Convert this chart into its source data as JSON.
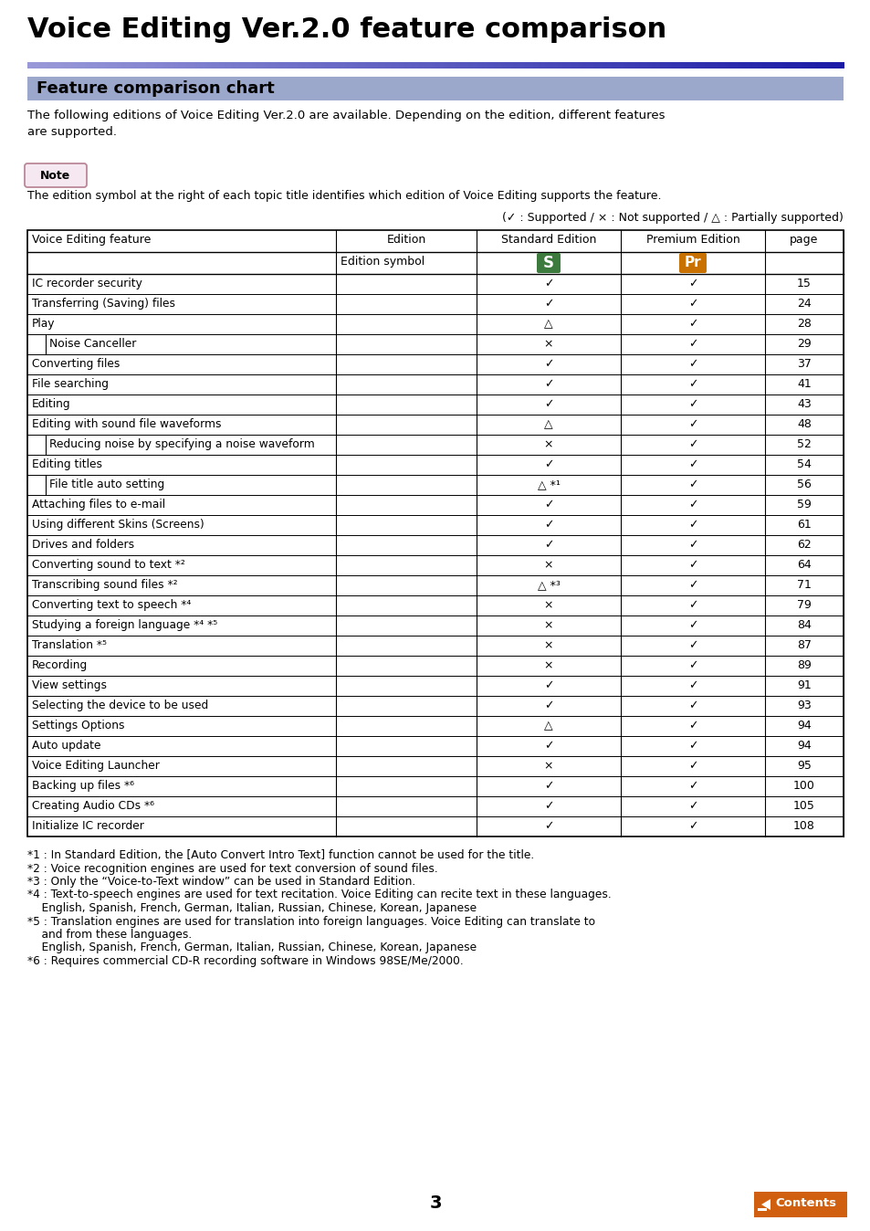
{
  "title": "Voice Editing Ver.2.0 feature comparison",
  "section_title": "Feature comparison chart",
  "intro_text": "The following editions of Voice Editing Ver.2.0 are available. Depending on the edition, different features\nare supported.",
  "note_text": "The edition symbol at the right of each topic title identifies which edition of Voice Editing supports the feature.",
  "legend_text": "(✓ : Supported / × : Not supported / △ : Partially supported)",
  "col_headers_row1": [
    "Voice Editing feature",
    "Edition",
    "Standard Edition",
    "Premium Edition",
    "page"
  ],
  "col_headers_row2": [
    "",
    "Edition symbol",
    "S",
    "Pr",
    ""
  ],
  "standard_color": "#3d7a3d",
  "premium_color": "#c87000",
  "rows": [
    {
      "feature": "IC recorder security",
      "indent": 0,
      "std": "✓",
      "prem": "✓",
      "page": "15"
    },
    {
      "feature": "Transferring (Saving) files",
      "indent": 0,
      "std": "✓",
      "prem": "✓",
      "page": "24"
    },
    {
      "feature": "Play",
      "indent": 0,
      "std": "△",
      "prem": "✓",
      "page": "28"
    },
    {
      "feature": "Noise Canceller",
      "indent": 1,
      "std": "×",
      "prem": "✓",
      "page": "29"
    },
    {
      "feature": "Converting files",
      "indent": 0,
      "std": "✓",
      "prem": "✓",
      "page": "37"
    },
    {
      "feature": "File searching",
      "indent": 0,
      "std": "✓",
      "prem": "✓",
      "page": "41"
    },
    {
      "feature": "Editing",
      "indent": 0,
      "std": "✓",
      "prem": "✓",
      "page": "43"
    },
    {
      "feature": "Editing with sound file waveforms",
      "indent": 0,
      "std": "△",
      "prem": "✓",
      "page": "48"
    },
    {
      "feature": "Reducing noise by specifying a noise waveform",
      "indent": 1,
      "std": "×",
      "prem": "✓",
      "page": "52"
    },
    {
      "feature": "Editing titles",
      "indent": 0,
      "std": "✓",
      "prem": "✓",
      "page": "54"
    },
    {
      "feature": "File title auto setting",
      "indent": 1,
      "std": "△ *¹",
      "prem": "✓",
      "page": "56"
    },
    {
      "feature": "Attaching files to e-mail",
      "indent": 0,
      "std": "✓",
      "prem": "✓",
      "page": "59"
    },
    {
      "feature": "Using different Skins (Screens)",
      "indent": 0,
      "std": "✓",
      "prem": "✓",
      "page": "61"
    },
    {
      "feature": "Drives and folders",
      "indent": 0,
      "std": "✓",
      "prem": "✓",
      "page": "62"
    },
    {
      "feature": "Converting sound to text *²",
      "indent": 0,
      "std": "×",
      "prem": "✓",
      "page": "64"
    },
    {
      "feature": "Transcribing sound files *²",
      "indent": 0,
      "std": "△ *³",
      "prem": "✓",
      "page": "71"
    },
    {
      "feature": "Converting text to speech *⁴",
      "indent": 0,
      "std": "×",
      "prem": "✓",
      "page": "79"
    },
    {
      "feature": "Studying a foreign language *⁴ *⁵",
      "indent": 0,
      "std": "×",
      "prem": "✓",
      "page": "84"
    },
    {
      "feature": "Translation *⁵",
      "indent": 0,
      "std": "×",
      "prem": "✓",
      "page": "87"
    },
    {
      "feature": "Recording",
      "indent": 0,
      "std": "×",
      "prem": "✓",
      "page": "89"
    },
    {
      "feature": "View settings",
      "indent": 0,
      "std": "✓",
      "prem": "✓",
      "page": "91"
    },
    {
      "feature": "Selecting the device to be used",
      "indent": 0,
      "std": "✓",
      "prem": "✓",
      "page": "93"
    },
    {
      "feature": "Settings Options",
      "indent": 0,
      "std": "△",
      "prem": "✓",
      "page": "94"
    },
    {
      "feature": "Auto update",
      "indent": 0,
      "std": "✓",
      "prem": "✓",
      "page": "94"
    },
    {
      "feature": "Voice Editing Launcher",
      "indent": 0,
      "std": "×",
      "prem": "✓",
      "page": "95"
    },
    {
      "feature": "Backing up files *⁶",
      "indent": 0,
      "std": "✓",
      "prem": "✓",
      "page": "100"
    },
    {
      "feature": "Creating Audio CDs *⁶",
      "indent": 0,
      "std": "✓",
      "prem": "✓",
      "page": "105"
    },
    {
      "feature": "Initialize IC recorder",
      "indent": 0,
      "std": "✓",
      "prem": "✓",
      "page": "108"
    }
  ],
  "footnotes": [
    "*1 : In Standard Edition, the [Auto Convert Intro Text] function cannot be used for the title.",
    "*2 : Voice recognition engines are used for text conversion of sound files.",
    "*3 : Only the “Voice-to-Text window” can be used in Standard Edition.",
    "*4 : Text-to-speech engines are used for text recitation. Voice Editing can recite text in these languages.",
    "    English, Spanish, French, German, Italian, Russian, Chinese, Korean, Japanese",
    "*5 : Translation engines are used for translation into foreign languages. Voice Editing can translate to",
    "    and from these languages.",
    "    English, Spanish, French, German, Italian, Russian, Chinese, Korean, Japanese",
    "*6 : Requires commercial CD-R recording software in Windows 98SE/Me/2000."
  ],
  "page_number": "3",
  "contents_color": "#d06010",
  "header_bar_color": "#9ba8cc",
  "title_line_color": "#1e1e8c",
  "title_line_light": "#9999cc"
}
